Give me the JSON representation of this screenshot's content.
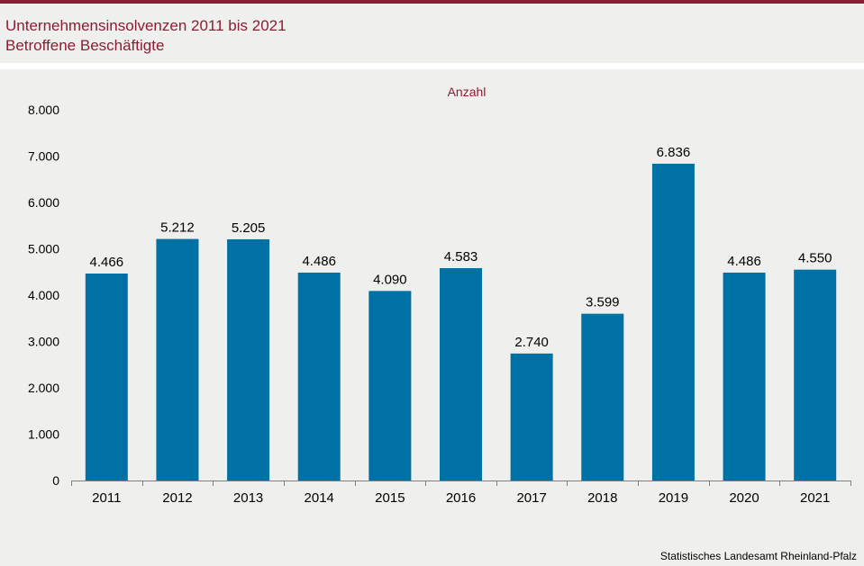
{
  "header": {
    "title": "Unternehmensinsolvenzen 2011 bis 2021",
    "subtitle": "Betroffene Beschäftigte"
  },
  "source": "Statistisches Landesamt  Rheinland-Pfalz",
  "colors": {
    "accent": "#8c1d32",
    "bar": "#0071a4",
    "panel_background": "#efefed"
  },
  "chart_data": {
    "type": "bar",
    "ylabel": "Anzahl",
    "categories": [
      "2011",
      "2012",
      "2013",
      "2014",
      "2015",
      "2016",
      "2017",
      "2018",
      "2019",
      "2020",
      "2021"
    ],
    "values": [
      4466,
      5212,
      5205,
      4486,
      4090,
      4583,
      2740,
      3599,
      6836,
      4486,
      4550
    ],
    "value_labels": [
      "4.466",
      "5.212",
      "5.205",
      "4.486",
      "4.090",
      "4.583",
      "2.740",
      "3.599",
      "6.836",
      "4.486",
      "4.550"
    ],
    "ylim": [
      0,
      8000
    ],
    "y_ticks": [
      0,
      1000,
      2000,
      3000,
      4000,
      5000,
      6000,
      7000,
      8000
    ],
    "y_tick_labels": [
      "0",
      "1.000",
      "2.000",
      "3.000",
      "4.000",
      "5.000",
      "6.000",
      "7.000",
      "8.000"
    ],
    "grid": false,
    "legend": "none"
  }
}
